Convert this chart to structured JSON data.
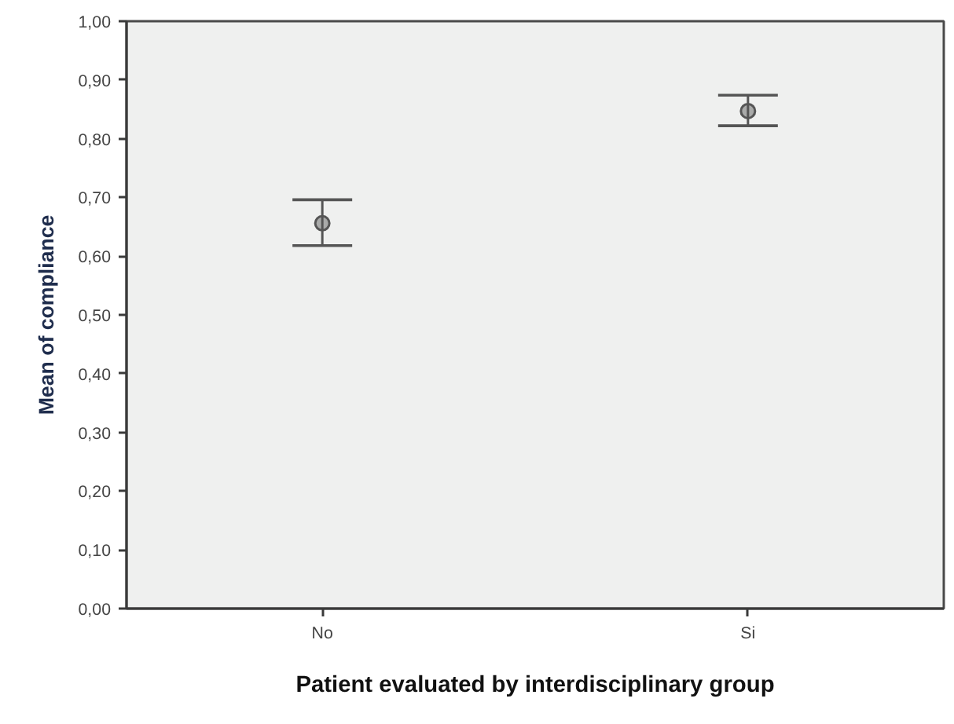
{
  "chart_data": {
    "type": "scatter",
    "xlabel": "Patient evaluated by interdisciplinary group",
    "ylabel": "Mean of compliance",
    "categories": [
      "No",
      "Si"
    ],
    "values": [
      0.656,
      0.847
    ],
    "errors": [
      [
        0.618,
        0.696
      ],
      [
        0.822,
        0.874
      ]
    ],
    "color": "#555555",
    "marker": "circle",
    "ylim": [
      0,
      1
    ],
    "yticks": [
      {
        "value": 0,
        "label": "0,00"
      },
      {
        "value": 0.1,
        "label": "0,10"
      },
      {
        "value": 0.2,
        "label": "0,20"
      },
      {
        "value": 0.3,
        "label": "0,30"
      },
      {
        "value": 0.4,
        "label": "0,40"
      },
      {
        "value": 0.5,
        "label": "0,50"
      },
      {
        "value": 0.6,
        "label": "0,60"
      },
      {
        "value": 0.7,
        "label": "0,70"
      },
      {
        "value": 0.8,
        "label": "0,80"
      },
      {
        "value": 0.9,
        "label": "0,90"
      },
      {
        "value": 1.0,
        "label": "1,00"
      }
    ]
  }
}
